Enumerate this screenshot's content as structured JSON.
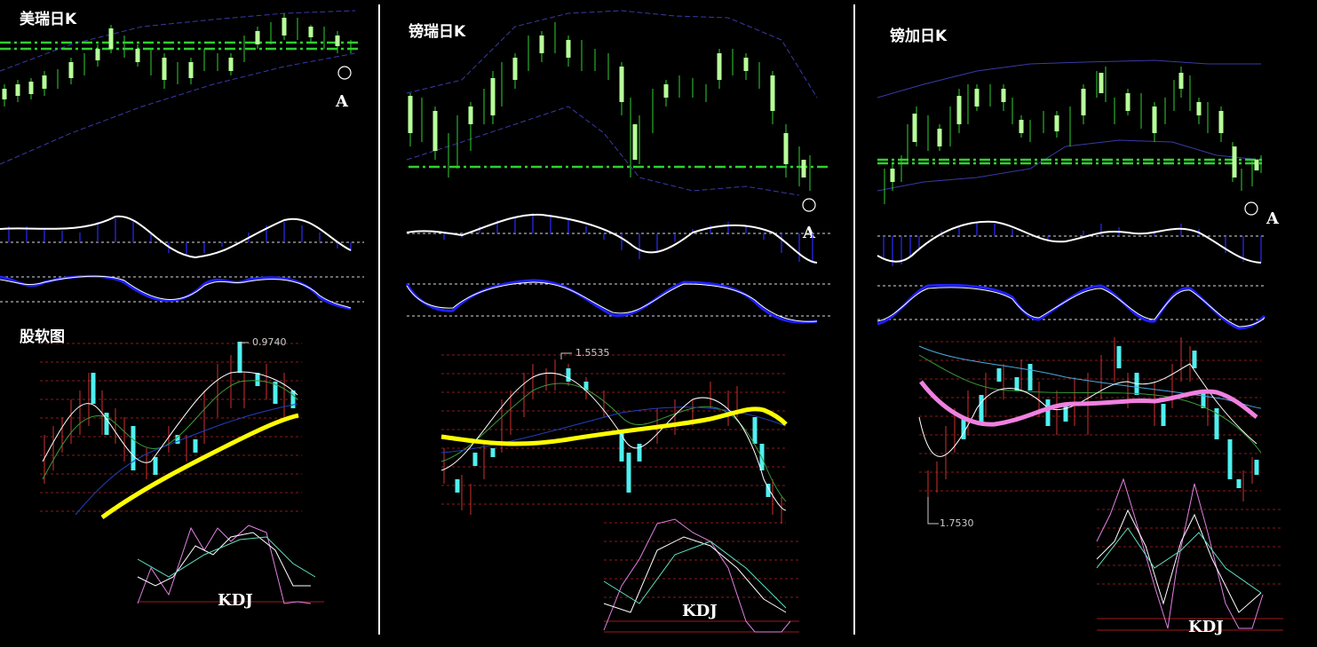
{
  "panels": [
    {
      "title": "美瑞日K",
      "marker": "A",
      "sub_title": "股软图",
      "price_label": "0.9740",
      "indicator": "KDJ"
    },
    {
      "title": "镑瑞日K",
      "marker": "A",
      "price_label": "1.5535",
      "indicator": "KDJ"
    },
    {
      "title": "镑加日K",
      "marker": "A",
      "price_label": "1.7530",
      "indicator": "KDJ"
    }
  ]
}
